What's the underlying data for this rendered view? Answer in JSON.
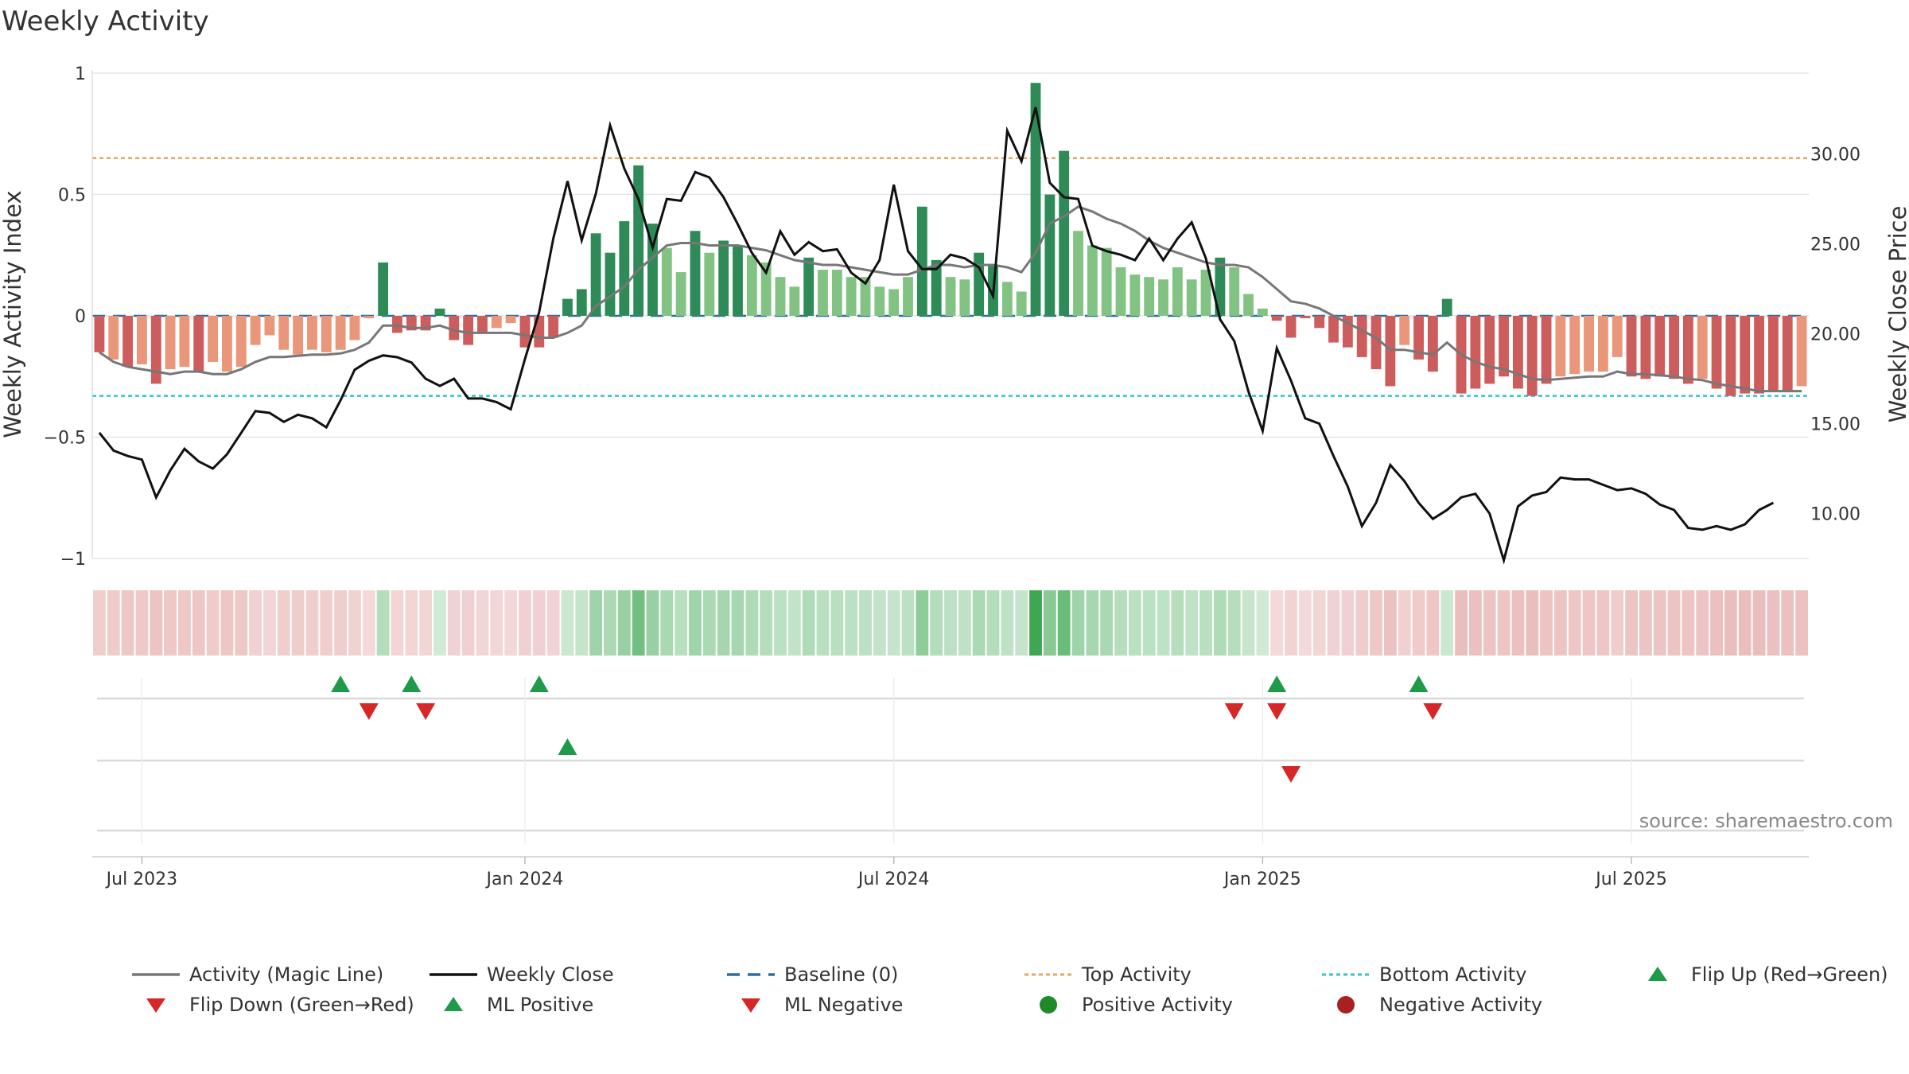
{
  "chart_data": {
    "type": "bar",
    "title": "Weekly Activity",
    "ylabel": "Weekly Activity Index",
    "ylabel_right": "Weekly Close Price",
    "ylim": [
      -1,
      1
    ],
    "ylim_right": [
      7.5,
      34.5
    ],
    "y_ticks": [
      {
        "v": 1,
        "label": "1"
      },
      {
        "v": 0.5,
        "label": "0.5"
      },
      {
        "v": 0,
        "label": "0"
      },
      {
        "v": -0.5,
        "label": "−0.5"
      },
      {
        "v": -1,
        "label": "−1"
      }
    ],
    "y_ticks_right": [
      {
        "v": 30,
        "label": "30.00"
      },
      {
        "v": 25,
        "label": "25.00"
      },
      {
        "v": 20,
        "label": "20.00"
      },
      {
        "v": 15,
        "label": "15.00"
      },
      {
        "v": 10,
        "label": "10.00"
      }
    ],
    "x_ticks": [
      {
        "week": 3,
        "label": "Jul 2023"
      },
      {
        "week": 30,
        "label": "Jan 2024"
      },
      {
        "week": 56,
        "label": "Jul 2024"
      },
      {
        "week": 82,
        "label": "Jan 2025"
      },
      {
        "week": 108,
        "label": "Jul 2025"
      }
    ],
    "top_activity": 0.65,
    "bottom_activity": -0.33,
    "baseline": 0,
    "activity": [
      -0.15,
      -0.18,
      -0.21,
      -0.2,
      -0.28,
      -0.22,
      -0.21,
      -0.23,
      -0.19,
      -0.23,
      -0.21,
      -0.12,
      -0.08,
      -0.14,
      -0.16,
      -0.14,
      -0.15,
      -0.14,
      -0.1,
      -0.01,
      0.22,
      -0.07,
      -0.06,
      -0.06,
      0.03,
      -0.1,
      -0.12,
      -0.07,
      -0.05,
      -0.03,
      -0.13,
      -0.13,
      -0.09,
      0.07,
      0.11,
      0.34,
      0.26,
      0.39,
      0.62,
      0.38,
      0.28,
      0.18,
      0.35,
      0.26,
      0.31,
      0.29,
      0.25,
      0.22,
      0.16,
      0.12,
      0.24,
      0.19,
      0.19,
      0.16,
      0.16,
      0.12,
      0.11,
      0.16,
      0.45,
      0.23,
      0.16,
      0.15,
      0.26,
      0.21,
      0.14,
      0.1,
      0.96,
      0.5,
      0.68,
      0.35,
      0.29,
      0.28,
      0.2,
      0.17,
      0.16,
      0.15,
      0.2,
      0.15,
      0.19,
      0.24,
      0.2,
      0.09,
      0.03,
      -0.02,
      -0.09,
      -0.01,
      -0.05,
      -0.11,
      -0.13,
      -0.17,
      -0.22,
      -0.29,
      -0.12,
      -0.18,
      -0.23,
      0.07,
      -0.32,
      -0.3,
      -0.28,
      -0.25,
      -0.3,
      -0.33,
      -0.28,
      -0.25,
      -0.24,
      -0.23,
      -0.23,
      -0.17,
      -0.25,
      -0.26,
      -0.25,
      -0.26,
      -0.28,
      -0.26,
      -0.3,
      -0.33,
      -0.32,
      -0.32,
      -0.31,
      -0.31,
      -0.29
    ],
    "magic_line": [
      -0.15,
      -0.19,
      -0.21,
      -0.22,
      -0.23,
      -0.24,
      -0.23,
      -0.23,
      -0.24,
      -0.24,
      -0.22,
      -0.19,
      -0.17,
      -0.17,
      -0.165,
      -0.16,
      -0.16,
      -0.155,
      -0.14,
      -0.11,
      -0.04,
      -0.04,
      -0.05,
      -0.05,
      -0.04,
      -0.06,
      -0.07,
      -0.07,
      -0.07,
      -0.07,
      -0.08,
      -0.09,
      -0.09,
      -0.07,
      -0.04,
      0.04,
      0.08,
      0.12,
      0.19,
      0.24,
      0.29,
      0.3,
      0.3,
      0.29,
      0.29,
      0.29,
      0.28,
      0.27,
      0.25,
      0.23,
      0.22,
      0.21,
      0.21,
      0.2,
      0.19,
      0.18,
      0.17,
      0.17,
      0.19,
      0.21,
      0.21,
      0.2,
      0.21,
      0.21,
      0.2,
      0.18,
      0.26,
      0.38,
      0.41,
      0.45,
      0.43,
      0.4,
      0.38,
      0.35,
      0.31,
      0.28,
      0.26,
      0.24,
      0.22,
      0.21,
      0.21,
      0.2,
      0.16,
      0.11,
      0.06,
      0.05,
      0.03,
      0.0,
      -0.03,
      -0.06,
      -0.09,
      -0.14,
      -0.14,
      -0.15,
      -0.16,
      -0.11,
      -0.16,
      -0.19,
      -0.21,
      -0.22,
      -0.24,
      -0.26,
      -0.265,
      -0.26,
      -0.255,
      -0.25,
      -0.25,
      -0.23,
      -0.24,
      -0.24,
      -0.245,
      -0.25,
      -0.26,
      -0.265,
      -0.28,
      -0.29,
      -0.3,
      -0.31,
      -0.31,
      -0.31,
      -0.31
    ],
    "weekly_close": [
      14.5,
      13.5,
      13.2,
      13.0,
      10.9,
      12.4,
      13.6,
      12.9,
      12.5,
      13.3,
      14.5,
      15.7,
      15.6,
      15.1,
      15.5,
      15.3,
      14.8,
      16.3,
      18.0,
      18.5,
      18.8,
      18.7,
      18.4,
      17.5,
      17.1,
      17.5,
      16.4,
      16.4,
      16.2,
      15.8,
      18.6,
      21.2,
      25.3,
      28.5,
      25.2,
      27.8,
      31.6,
      29.2,
      27.5,
      24.8,
      27.5,
      27.4,
      29.0,
      28.7,
      27.6,
      26.1,
      24.5,
      23.4,
      25.7,
      24.4,
      25.1,
      24.6,
      24.7,
      23.4,
      22.8,
      24.1,
      28.3,
      24.6,
      23.6,
      23.6,
      24.4,
      24.2,
      23.7,
      22.1,
      31.3,
      29.6,
      32.6,
      28.4,
      27.6,
      27.5,
      24.9,
      24.6,
      24.4,
      24.1,
      25.3,
      24.1,
      25.3,
      26.2,
      24.2,
      20.8,
      19.6,
      16.8,
      14.6,
      19.2,
      17.4,
      15.3,
      15.0,
      13.2,
      11.5,
      9.3,
      10.6,
      12.7,
      11.8,
      10.6,
      9.7,
      10.2,
      10.9,
      11.1,
      10.0,
      7.4,
      10.4,
      11.0,
      11.2,
      12.0,
      11.9,
      11.9,
      11.6,
      11.3,
      11.4,
      11.1,
      10.5,
      10.2,
      9.2,
      9.1,
      9.3,
      9.1,
      9.4,
      10.2,
      10.6
    ],
    "flip_up_weeks": [
      17,
      22,
      31,
      83,
      93
    ],
    "flip_down_weeks": [
      19,
      23,
      80,
      83,
      94
    ],
    "ml_positive_weeks": [
      33
    ],
    "ml_negative_weeks": [
      84
    ],
    "source": "source: sharemaestro.com",
    "legend": [
      {
        "label": "Activity (Magic Line)",
        "symbol": "line",
        "color": "#777777"
      },
      {
        "label": "Weekly Close",
        "symbol": "line",
        "color": "#111111"
      },
      {
        "label": "Baseline (0)",
        "symbol": "dash",
        "color": "#2b6ea6"
      },
      {
        "label": "Top Activity",
        "symbol": "dot-line",
        "color": "#e8a664"
      },
      {
        "label": "Bottom Activity",
        "symbol": "dot-line",
        "color": "#33c4cf"
      },
      {
        "label": "Flip Up (Red→Green)",
        "symbol": "tri-up",
        "color": "#1f9a4a"
      },
      {
        "label": "Flip Down (Green→Red)",
        "symbol": "tri-down",
        "color": "#d62728"
      },
      {
        "label": "ML Positive",
        "symbol": "tri-up",
        "color": "#1f9a4a"
      },
      {
        "label": "ML Negative",
        "symbol": "tri-down",
        "color": "#d62728"
      },
      {
        "label": "Positive Activity",
        "symbol": "circle",
        "color": "#1f8a2a"
      },
      {
        "label": "Negative Activity",
        "symbol": "circle",
        "color": "#a82020"
      }
    ],
    "colors": {
      "pos_dark": "#2e8b57",
      "pos_light": "#82c383",
      "neg_dark": "#cd5c5c",
      "neg_light": "#e9967a",
      "magic_line": "#777777",
      "close": "#111111",
      "baseline": "#2b6ea6",
      "top": "#e8a664",
      "bottom": "#33c4cf",
      "grid": "#e6e6e6"
    }
  }
}
